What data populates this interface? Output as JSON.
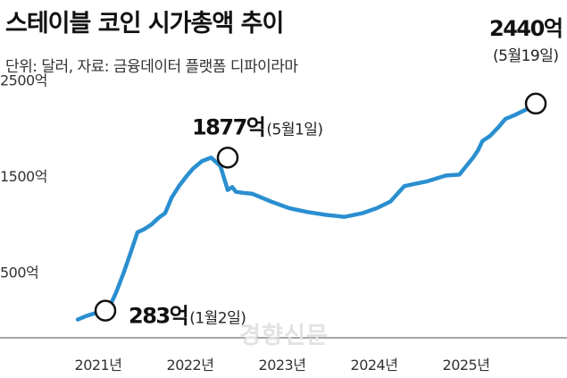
{
  "chart_data": {
    "type": "line",
    "title": "스테이블 코인 시가총액 추이",
    "subtitle": "단위: 달러, 자료: 금융데이터 플랫폼 디파이라마",
    "x_tick_labels": [
      "2021년",
      "2022년",
      "2023년",
      "2024년",
      "2025년"
    ],
    "y_tick_labels": [
      "500억",
      "1500억",
      "2500억"
    ],
    "y_ticks": [
      500,
      1500,
      2500
    ],
    "ylim": [
      0,
      2700
    ],
    "xlim": [
      2020.55,
      2026.1
    ],
    "grid": false,
    "series": [
      {
        "color": "#2a8fd0",
        "x": [
          2020.7,
          2020.8,
          2020.9,
          2021.0,
          2021.05,
          2021.12,
          2021.2,
          2021.28,
          2021.35,
          2021.42,
          2021.5,
          2021.58,
          2021.65,
          2021.72,
          2021.8,
          2021.88,
          2021.95,
          2022.05,
          2022.15,
          2022.25,
          2022.33,
          2022.38,
          2022.42,
          2022.5,
          2022.6,
          2022.8,
          2023.0,
          2023.2,
          2023.4,
          2023.6,
          2023.8,
          2023.95,
          2024.1,
          2024.25,
          2024.35,
          2024.5,
          2024.7,
          2024.85,
          2025.0,
          2025.05,
          2025.1,
          2025.18,
          2025.28,
          2025.35,
          2025.45,
          2025.6,
          2025.68
        ],
        "y": [
          190,
          230,
          260,
          283,
          330,
          480,
          680,
          900,
          1100,
          1130,
          1180,
          1250,
          1300,
          1460,
          1580,
          1680,
          1760,
          1840,
          1877,
          1790,
          1540,
          1570,
          1520,
          1510,
          1500,
          1420,
          1350,
          1310,
          1280,
          1260,
          1300,
          1350,
          1420,
          1580,
          1600,
          1630,
          1690,
          1700,
          1880,
          1950,
          2050,
          2100,
          2200,
          2280,
          2320,
          2390,
          2440
        ]
      }
    ],
    "annotations": [
      {
        "value": "283억",
        "note": "(1월2일)",
        "x": 2021.0,
        "y": 283
      },
      {
        "value": "1877억",
        "note": "(5월1일)",
        "x": 2022.33,
        "y": 1877
      },
      {
        "value": "2440억",
        "note": "(5월19일)",
        "x": 2025.68,
        "y": 2440
      }
    ],
    "watermark": "경향신문"
  }
}
